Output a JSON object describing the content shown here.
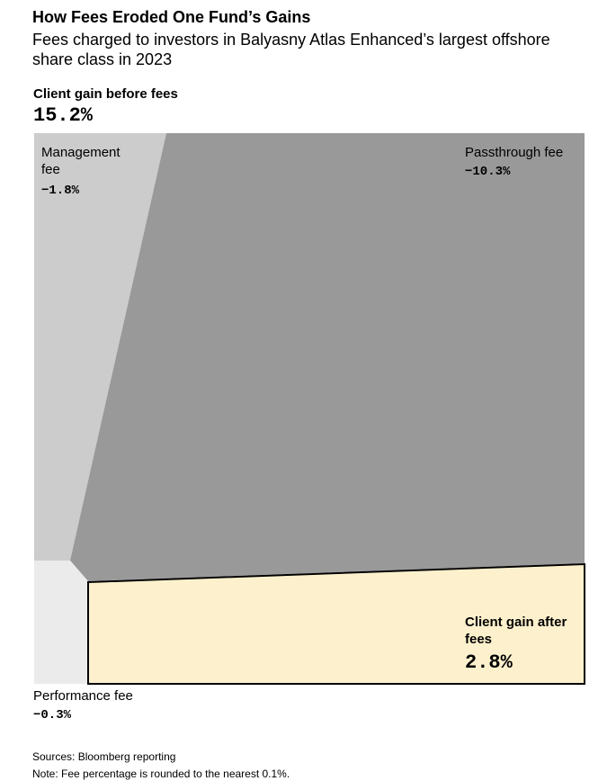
{
  "chart_data": {
    "type": "treemap",
    "title": "How Fees Eroded One Fund’s Gains",
    "subtitle": "Fees charged to investors in Balyasny Atlas Enhanced’s largest offshore share class in 2023",
    "total_name": "Client gain before fees",
    "total": 15.2,
    "total_label": "15.2%",
    "categories": [
      "Management fee",
      "Passthrough fee",
      "Performance fee",
      "Client gain after fees"
    ],
    "values": [
      -1.8,
      -10.3,
      -0.3,
      2.8
    ],
    "value_labels": [
      "−1.8%",
      "−10.3%",
      "−0.3%",
      "2.8%"
    ],
    "colors": [
      "#cccccc",
      "#999999",
      "#ebebeb",
      "#fdf1cd"
    ],
    "sources": "Sources: Bloomberg reporting",
    "note": "Note: Fee percentage is rounded to the nearest 0.1%."
  }
}
